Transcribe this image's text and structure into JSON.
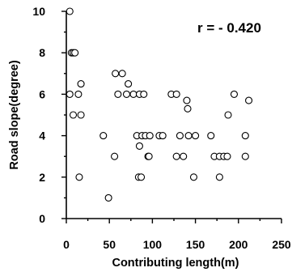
{
  "chart_data": {
    "type": "scatter",
    "title": "",
    "xlabel": "Contributing length(m)",
    "ylabel": "Road slope(degree)",
    "annotation": "r = - 0.420",
    "xlim": [
      0,
      250
    ],
    "ylim": [
      0,
      10
    ],
    "x_ticks": [
      0,
      50,
      100,
      150,
      200,
      250
    ],
    "x_tick_labels": [
      "0",
      "50",
      "100",
      "150",
      "200",
      "250"
    ],
    "y_ticks": [
      0,
      2,
      4,
      6,
      8,
      10
    ],
    "y_tick_labels": [
      "0",
      "2",
      "4",
      "6",
      "8",
      "10"
    ],
    "grid": false,
    "legend": false,
    "marker": "open-circle",
    "series": [
      {
        "points": [
          {
            "x": 4,
            "y": 10
          },
          {
            "x": 6,
            "y": 8
          },
          {
            "x": 8,
            "y": 8
          },
          {
            "x": 10,
            "y": 8
          },
          {
            "x": 4,
            "y": 6
          },
          {
            "x": 14,
            "y": 6
          },
          {
            "x": 17,
            "y": 6.5
          },
          {
            "x": 8,
            "y": 5
          },
          {
            "x": 17,
            "y": 5
          },
          {
            "x": 15,
            "y": 2
          },
          {
            "x": 43,
            "y": 4
          },
          {
            "x": 49,
            "y": 1
          },
          {
            "x": 57,
            "y": 7
          },
          {
            "x": 65,
            "y": 7
          },
          {
            "x": 72,
            "y": 6.5
          },
          {
            "x": 60,
            "y": 6
          },
          {
            "x": 70,
            "y": 6
          },
          {
            "x": 78,
            "y": 6
          },
          {
            "x": 85,
            "y": 6
          },
          {
            "x": 90,
            "y": 6
          },
          {
            "x": 56,
            "y": 3
          },
          {
            "x": 82,
            "y": 4
          },
          {
            "x": 88,
            "y": 4
          },
          {
            "x": 92,
            "y": 4
          },
          {
            "x": 97,
            "y": 4
          },
          {
            "x": 85,
            "y": 3.5
          },
          {
            "x": 95,
            "y": 3
          },
          {
            "x": 96,
            "y": 3
          },
          {
            "x": 84,
            "y": 2
          },
          {
            "x": 87,
            "y": 2
          },
          {
            "x": 108,
            "y": 4
          },
          {
            "x": 112,
            "y": 4
          },
          {
            "x": 122,
            "y": 6
          },
          {
            "x": 128,
            "y": 6
          },
          {
            "x": 128,
            "y": 3
          },
          {
            "x": 136,
            "y": 3
          },
          {
            "x": 132,
            "y": 4
          },
          {
            "x": 140,
            "y": 5.7
          },
          {
            "x": 141,
            "y": 5.3
          },
          {
            "x": 142,
            "y": 4
          },
          {
            "x": 150,
            "y": 4
          },
          {
            "x": 148,
            "y": 2
          },
          {
            "x": 168,
            "y": 4
          },
          {
            "x": 172,
            "y": 3
          },
          {
            "x": 178,
            "y": 3
          },
          {
            "x": 178,
            "y": 2
          },
          {
            "x": 183,
            "y": 3
          },
          {
            "x": 187,
            "y": 3
          },
          {
            "x": 188,
            "y": 5
          },
          {
            "x": 195,
            "y": 6
          },
          {
            "x": 208,
            "y": 4
          },
          {
            "x": 208,
            "y": 3
          },
          {
            "x": 212,
            "y": 5.7
          }
        ]
      }
    ]
  }
}
